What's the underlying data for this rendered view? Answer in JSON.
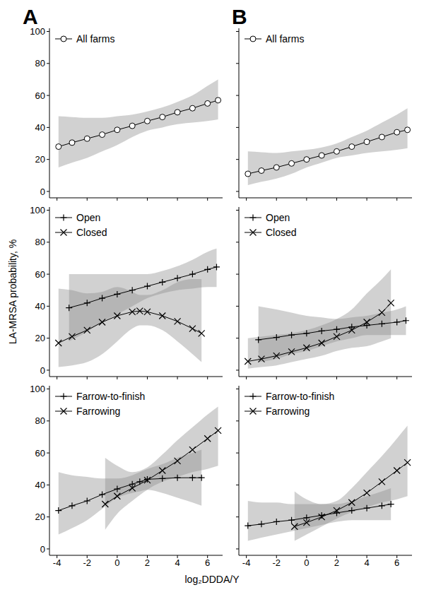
{
  "x_label": "log₂DDDA/Y",
  "y_label": "LA-MRSA probability, %",
  "chart_data": [
    {
      "type": "line",
      "title": "A",
      "legend": "upper left",
      "tick_labels": "y",
      "xlim": [
        -4.5,
        7
      ],
      "xticks": [
        -4,
        -2,
        0,
        2,
        4,
        6
      ],
      "ylim": [
        -4,
        102
      ],
      "yticks": [
        0,
        20,
        40,
        60,
        80,
        100
      ],
      "series": [
        {
          "name": "All farms",
          "color": "#000000",
          "marker": "circle",
          "x": [
            -3.9,
            -3,
            -2,
            -1,
            0,
            1,
            2,
            3,
            4,
            5,
            6,
            6.7
          ],
          "values": [
            28,
            30.5,
            33,
            35.5,
            38.5,
            41,
            44,
            46.5,
            49.5,
            52,
            55,
            57
          ],
          "lower": [
            15,
            18,
            21,
            25,
            29,
            34,
            38,
            40,
            42,
            43,
            44,
            45
          ],
          "upper": [
            47,
            46.5,
            46,
            46,
            47,
            48,
            50,
            52.5,
            56,
            60,
            66,
            70
          ]
        }
      ]
    },
    {
      "type": "line",
      "title": "B",
      "legend": "upper left",
      "tick_labels": false,
      "xlim": [
        -4.5,
        7
      ],
      "xticks": [
        -4,
        -2,
        0,
        2,
        4,
        6
      ],
      "ylim": [
        -4,
        102
      ],
      "yticks": [
        0,
        20,
        40,
        60,
        80,
        100
      ],
      "series": [
        {
          "name": "All farms",
          "color": "#000000",
          "marker": "circle",
          "x": [
            -3.9,
            -3,
            -2,
            -1,
            0,
            1,
            2,
            3,
            4,
            5,
            6,
            6.7
          ],
          "values": [
            11,
            13,
            15,
            17.5,
            20,
            22.5,
            25,
            28,
            31,
            34,
            37,
            38.5
          ],
          "lower": [
            4,
            6,
            8,
            11,
            15,
            18,
            21,
            22.5,
            24,
            25,
            26,
            27
          ],
          "upper": [
            25,
            24.5,
            24,
            25,
            26,
            27.5,
            30,
            34,
            38,
            43,
            48,
            52
          ]
        }
      ]
    },
    {
      "type": "line",
      "legend": "upper left",
      "tick_labels": "y",
      "xlim": [
        -4.5,
        7
      ],
      "xticks": [
        -4,
        -2,
        0,
        2,
        4,
        6
      ],
      "ylim": [
        -4,
        102
      ],
      "yticks": [
        0,
        20,
        40,
        60,
        80,
        100
      ],
      "series": [
        {
          "name": "Open",
          "color": "#000000",
          "marker": "plus",
          "x": [
            -3.2,
            -2,
            -1,
            0,
            1,
            2,
            3,
            4,
            5,
            6,
            6.6
          ],
          "values": [
            39,
            42,
            45,
            47.5,
            50,
            52.5,
            55,
            57.5,
            60,
            63,
            64.5
          ],
          "lower": [
            18,
            24,
            30,
            35,
            40,
            45,
            48,
            50,
            51,
            52,
            52
          ],
          "upper": [
            60,
            60,
            60,
            60,
            60,
            60,
            62,
            65,
            69,
            74,
            76
          ]
        },
        {
          "name": "Closed",
          "color": "#000000",
          "marker": "x",
          "x": [
            -3.9,
            -3,
            -2,
            -1,
            0,
            1,
            1.5,
            2,
            3,
            4,
            5,
            5.6
          ],
          "values": [
            17,
            21,
            25,
            30,
            34,
            36.5,
            37,
            36.5,
            34,
            30.5,
            26,
            23
          ],
          "lower": [
            2,
            3,
            5,
            10,
            18,
            26,
            28,
            28,
            25,
            18,
            10,
            5
          ],
          "upper": [
            51,
            50,
            48,
            49,
            52,
            49,
            47,
            47,
            50,
            55,
            57,
            57
          ]
        }
      ]
    },
    {
      "type": "line",
      "legend": "upper left",
      "tick_labels": false,
      "xlim": [
        -4.5,
        7
      ],
      "xticks": [
        -4,
        -2,
        0,
        2,
        4,
        6
      ],
      "ylim": [
        -4,
        102
      ],
      "yticks": [
        0,
        20,
        40,
        60,
        80,
        100
      ],
      "series": [
        {
          "name": "Open",
          "color": "#000000",
          "marker": "plus",
          "x": [
            -3.2,
            -2,
            -1,
            0,
            1,
            2,
            3,
            4,
            5,
            6,
            6.6
          ],
          "values": [
            19,
            20.5,
            22,
            23,
            24.5,
            25.5,
            27,
            28,
            29,
            30,
            31
          ],
          "lower": [
            5,
            7,
            10,
            12,
            15,
            18,
            20,
            22,
            22,
            22,
            22
          ],
          "upper": [
            40,
            38,
            36,
            34,
            33,
            32,
            33,
            34,
            36,
            38,
            40
          ]
        },
        {
          "name": "Closed",
          "color": "#000000",
          "marker": "x",
          "x": [
            -3.9,
            -3,
            -2,
            -1,
            0,
            1,
            2,
            3,
            4,
            5,
            5.6
          ],
          "values": [
            5.5,
            7,
            9,
            11.5,
            14,
            17,
            21,
            25,
            30,
            36,
            42
          ],
          "lower": [
            1,
            2,
            3,
            5,
            7,
            9,
            12,
            14,
            15,
            18,
            20
          ],
          "upper": [
            20,
            21,
            22,
            23,
            25,
            28,
            32,
            38,
            48,
            57,
            63
          ]
        }
      ]
    },
    {
      "type": "line",
      "legend": "upper left",
      "xlim": [
        -4.5,
        7
      ],
      "xticks": [
        -4,
        -2,
        0,
        2,
        4,
        6
      ],
      "ylim": [
        -4,
        102
      ],
      "yticks": [
        0,
        20,
        40,
        60,
        80,
        100
      ],
      "series": [
        {
          "name": "Farrow-to-finish",
          "color": "#000000",
          "marker": "plus",
          "x": [
            -3.9,
            -3,
            -2,
            -1,
            0,
            1,
            1.5,
            2,
            3,
            4,
            5,
            5.6
          ],
          "values": [
            24,
            27,
            30,
            34,
            37.5,
            40.5,
            42,
            43.5,
            44,
            44.5,
            44.5,
            44.5
          ],
          "lower": [
            9,
            13,
            18,
            25,
            32,
            35,
            36,
            37,
            35,
            32,
            29,
            27
          ],
          "upper": [
            48,
            46,
            45,
            44,
            44,
            46,
            48,
            50,
            53,
            57,
            60,
            62
          ]
        },
        {
          "name": "Farrowing",
          "color": "#000000",
          "marker": "x",
          "x": [
            -0.8,
            0,
            1,
            2,
            3,
            4,
            5,
            6,
            6.7
          ],
          "values": [
            28,
            33,
            38,
            43,
            49,
            55,
            62,
            69,
            74
          ],
          "lower": [
            12,
            22,
            30,
            37,
            42,
            45,
            48,
            50,
            52
          ],
          "upper": [
            57,
            52,
            48,
            51,
            59,
            68,
            76,
            84,
            89
          ]
        }
      ]
    },
    {
      "type": "line",
      "legend": "upper left",
      "tick_labels": "x",
      "xlim": [
        -4.5,
        7
      ],
      "xticks": [
        -4,
        -2,
        0,
        2,
        4,
        6
      ],
      "ylim": [
        -4,
        102
      ],
      "yticks": [
        0,
        20,
        40,
        60,
        80,
        100
      ],
      "series": [
        {
          "name": "Farrow-to-finish",
          "color": "#000000",
          "marker": "plus",
          "x": [
            -3.9,
            -3,
            -2,
            -1,
            0,
            1,
            2,
            3,
            4,
            5,
            5.6
          ],
          "values": [
            14.5,
            15.5,
            17,
            18,
            19.5,
            21,
            22.5,
            24,
            25.5,
            27,
            28
          ],
          "lower": [
            5,
            7,
            9,
            11,
            13,
            15,
            17,
            18,
            18,
            18,
            18
          ],
          "upper": [
            30,
            29,
            29,
            28,
            28,
            28,
            28,
            30,
            33,
            36,
            38
          ]
        },
        {
          "name": "Farrowing",
          "color": "#000000",
          "marker": "x",
          "x": [
            -0.8,
            0,
            1,
            2,
            3,
            4,
            5,
            6,
            6.7
          ],
          "values": [
            14,
            16.5,
            20,
            24,
            29,
            35,
            42,
            49,
            54
          ],
          "lower": [
            5,
            9,
            14,
            19,
            23,
            26,
            29,
            31,
            33
          ],
          "upper": [
            36,
            31,
            28,
            30,
            38,
            48,
            58,
            69,
            77
          ]
        }
      ]
    }
  ]
}
